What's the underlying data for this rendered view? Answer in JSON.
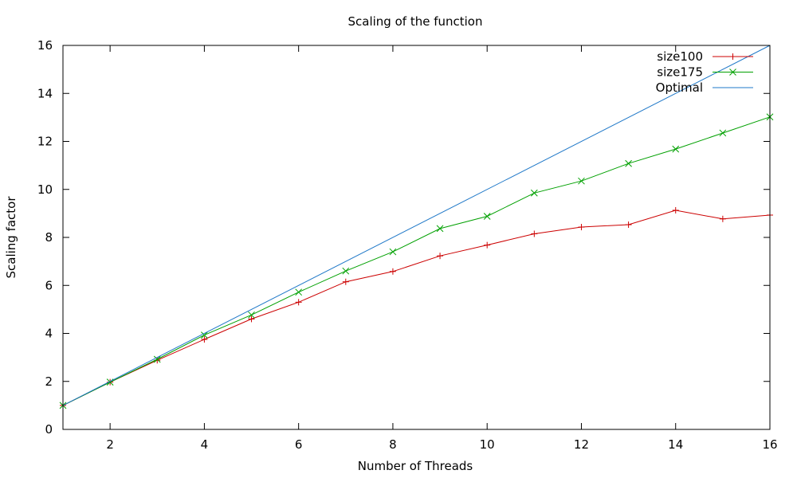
{
  "chart_data": {
    "type": "line",
    "title": "Scaling of the function",
    "xlabel": "Number of Threads",
    "ylabel": "Scaling factor",
    "xlim": [
      1,
      16
    ],
    "ylim": [
      0,
      16
    ],
    "x_ticks": [
      2,
      4,
      6,
      8,
      10,
      12,
      14,
      16
    ],
    "y_ticks": [
      0,
      2,
      4,
      6,
      8,
      10,
      12,
      14,
      16
    ],
    "grid": false,
    "legend_position": "top-right",
    "series": [
      {
        "name": "size100",
        "color": "#cc0000",
        "marker": "plus",
        "x": [
          1,
          2,
          3,
          4,
          5,
          6,
          7,
          8,
          9,
          10,
          11,
          12,
          13,
          14,
          15,
          16
        ],
        "values": [
          1.0,
          1.97,
          2.88,
          3.75,
          4.6,
          5.3,
          6.15,
          6.58,
          7.23,
          7.68,
          8.15,
          8.43,
          8.53,
          9.13,
          8.77,
          8.93
        ]
      },
      {
        "name": "size175",
        "color": "#00a000",
        "marker": "cross",
        "x": [
          1,
          2,
          3,
          4,
          5,
          6,
          7,
          8,
          9,
          10,
          11,
          12,
          13,
          14,
          15,
          16
        ],
        "values": [
          1.0,
          1.97,
          2.92,
          3.93,
          4.77,
          5.72,
          6.6,
          7.4,
          8.37,
          8.88,
          9.85,
          10.35,
          11.08,
          11.68,
          12.35,
          13.02
        ]
      },
      {
        "name": "Optimal",
        "color": "#1f78c8",
        "marker": "none",
        "x": [
          1,
          16
        ],
        "values": [
          1,
          16
        ]
      }
    ]
  }
}
